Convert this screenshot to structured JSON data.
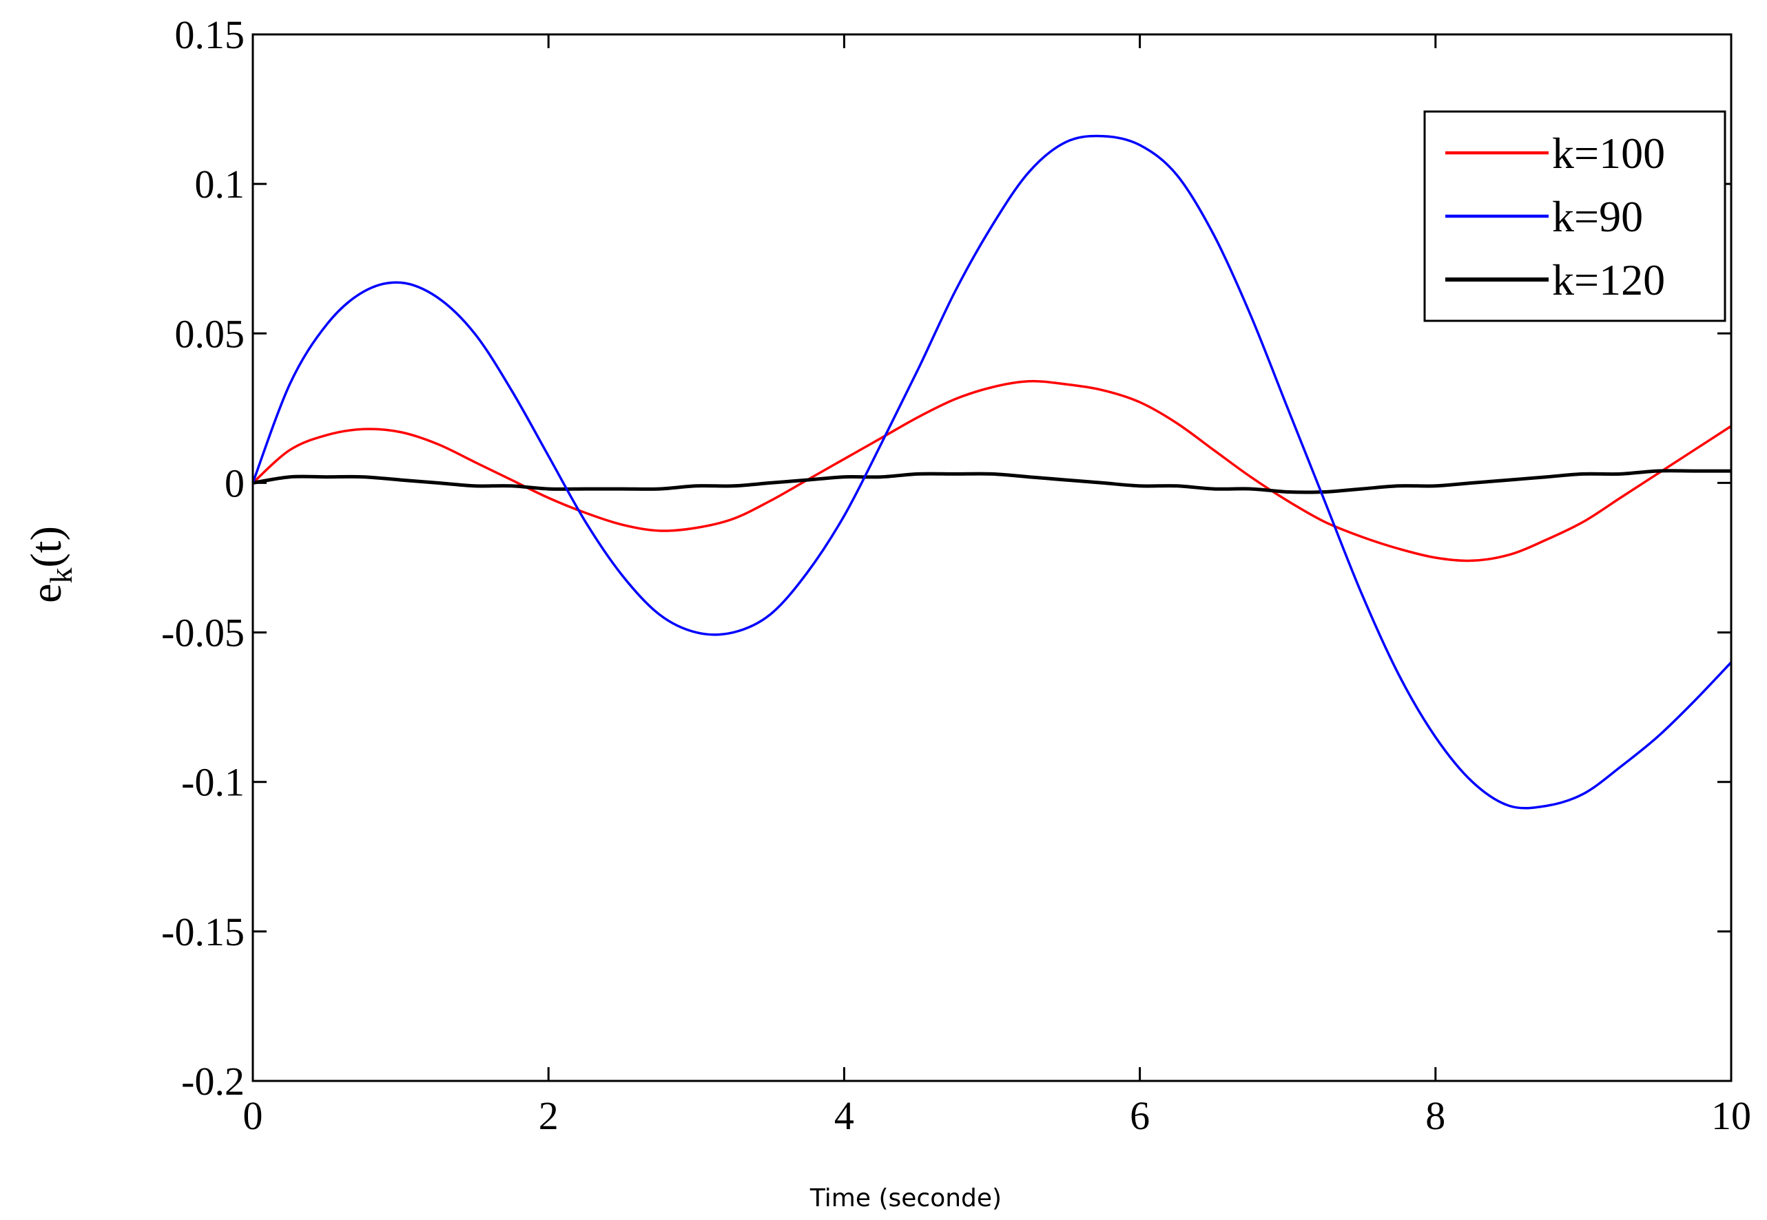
{
  "chart_data": {
    "type": "line",
    "title": "",
    "xlabel": "Time (seconde)",
    "ylabel": {
      "base": "e",
      "subscript": "k",
      "suffix": "(t)"
    },
    "xlim": [
      0,
      10
    ],
    "ylim": [
      -0.2,
      0.15
    ],
    "xticks": [
      0,
      2,
      4,
      6,
      8,
      10
    ],
    "yticks": [
      -0.2,
      -0.15,
      -0.1,
      -0.05,
      0,
      0.05,
      0.1,
      0.15
    ],
    "xtick_labels": [
      "0",
      "2",
      "4",
      "6",
      "8",
      "10"
    ],
    "ytick_labels": [
      "-0.2",
      "-0.15",
      "-0.1",
      "-0.05",
      "0",
      "0.05",
      "0.1",
      "0.15"
    ],
    "grid": false,
    "legend_position": "top-right",
    "x": [
      0,
      0.25,
      0.5,
      0.75,
      1,
      1.25,
      1.5,
      1.75,
      2,
      2.25,
      2.5,
      2.75,
      3,
      3.25,
      3.5,
      3.75,
      4,
      4.25,
      4.5,
      4.75,
      5,
      5.25,
      5.5,
      5.75,
      6,
      6.25,
      6.5,
      6.75,
      7,
      7.25,
      7.5,
      7.75,
      8,
      8.25,
      8.5,
      8.75,
      9,
      9.25,
      9.5,
      9.75,
      10
    ],
    "series": [
      {
        "name": "k=100",
        "color": "#ff0000",
        "values": [
          0,
          0.011,
          0.016,
          0.018,
          0.017,
          0.013,
          0.007,
          0.001,
          -0.005,
          -0.01,
          -0.014,
          -0.016,
          -0.015,
          -0.012,
          -0.006,
          0.001,
          0.008,
          0.015,
          0.022,
          0.028,
          0.032,
          0.034,
          0.033,
          0.031,
          0.027,
          0.02,
          0.011,
          0.002,
          -0.006,
          -0.013,
          -0.018,
          -0.022,
          -0.025,
          -0.026,
          -0.024,
          -0.019,
          -0.013,
          -0.005,
          0.003,
          0.011,
          0.019
        ]
      },
      {
        "name": "k=90",
        "color": "#0000ff",
        "values": [
          0,
          0.033,
          0.053,
          0.064,
          0.067,
          0.062,
          0.05,
          0.031,
          0.009,
          -0.013,
          -0.031,
          -0.044,
          -0.05,
          -0.05,
          -0.044,
          -0.03,
          -0.011,
          0.013,
          0.038,
          0.064,
          0.086,
          0.104,
          0.114,
          0.116,
          0.113,
          0.103,
          0.083,
          0.056,
          0.025,
          -0.006,
          -0.037,
          -0.064,
          -0.085,
          -0.1,
          -0.108,
          -0.108,
          -0.104,
          -0.095,
          -0.085,
          -0.073,
          -0.06
        ]
      },
      {
        "name": "k=120",
        "color": "#000000",
        "values": [
          0,
          0.002,
          0.002,
          0.002,
          0.001,
          0.0,
          -0.001,
          -0.001,
          -0.002,
          -0.002,
          -0.002,
          -0.002,
          -0.001,
          -0.001,
          0.0,
          0.001,
          0.002,
          0.002,
          0.003,
          0.003,
          0.003,
          0.002,
          0.001,
          0.0,
          -0.001,
          -0.001,
          -0.002,
          -0.002,
          -0.003,
          -0.003,
          -0.002,
          -0.001,
          -0.001,
          0.0,
          0.001,
          0.002,
          0.003,
          0.003,
          0.004,
          0.004,
          0.004
        ]
      }
    ]
  }
}
